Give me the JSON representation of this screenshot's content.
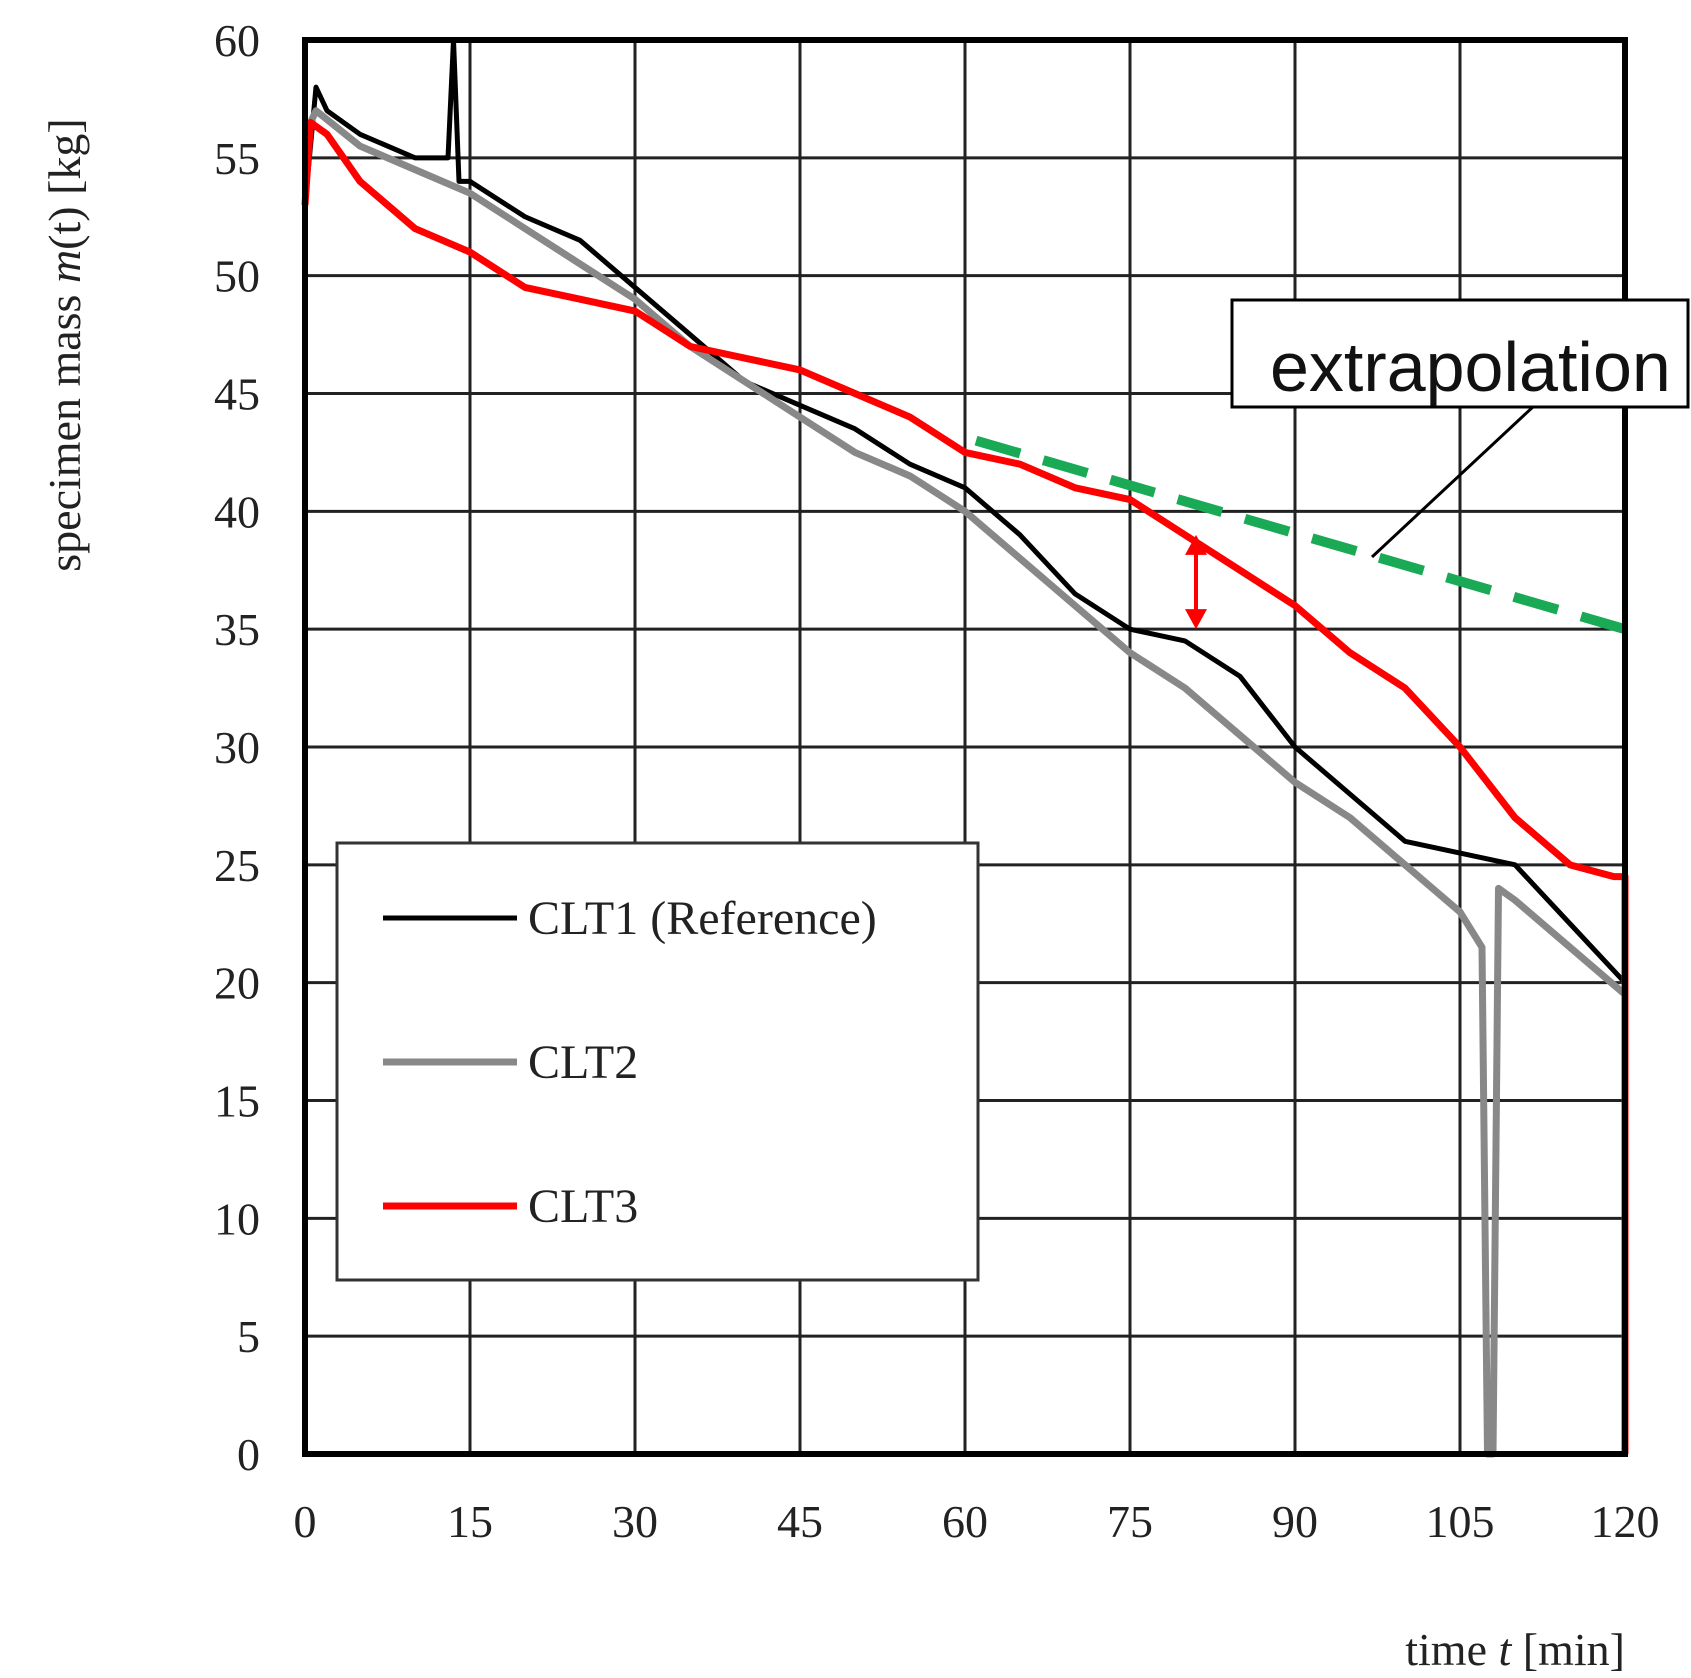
{
  "chart_data": {
    "type": "line",
    "xlabel_prefix": "time ",
    "xlabel_var": "t",
    "xlabel_unit": " [min]",
    "ylabel_prefix": "specimen mass ",
    "ylabel_var": "m",
    "ylabel_arg": "(t)",
    "ylabel_unit": " [kg]",
    "xlim": [
      0,
      120
    ],
    "ylim": [
      0,
      60
    ],
    "x_ticks": [
      0,
      15,
      30,
      45,
      60,
      75,
      90,
      105,
      120
    ],
    "y_ticks": [
      0,
      5,
      10,
      15,
      20,
      25,
      30,
      35,
      40,
      45,
      50,
      55,
      60
    ],
    "grid": true,
    "legend_position": "bottom-left",
    "series": [
      {
        "name": "CLT1 (Reference)",
        "color": "#000000",
        "x": [
          0,
          1,
          2,
          5,
          10,
          13,
          13.5,
          14,
          15,
          20,
          25,
          30,
          35,
          40,
          45,
          50,
          55,
          60,
          65,
          70,
          75,
          80,
          85,
          90,
          95,
          100,
          105,
          110,
          115,
          120
        ],
        "y": [
          53,
          58,
          57,
          56,
          55,
          55,
          60,
          54,
          54,
          52.5,
          51.5,
          49.5,
          47.5,
          45.5,
          44.5,
          43.5,
          42,
          41,
          39,
          36.5,
          35,
          34.5,
          33,
          30,
          28,
          26,
          25.5,
          25,
          22.5,
          20
        ]
      },
      {
        "name": "CLT2",
        "color": "#888888",
        "x": [
          0,
          1,
          5,
          10,
          15,
          20,
          25,
          30,
          35,
          40,
          45,
          50,
          55,
          60,
          65,
          70,
          75,
          80,
          85,
          90,
          95,
          100,
          105,
          107,
          107.5,
          108,
          108.5,
          110,
          115,
          120
        ],
        "y": [
          56,
          57,
          55.5,
          54.5,
          53.5,
          52,
          50.5,
          49,
          47,
          45.5,
          44,
          42.5,
          41.5,
          40,
          38,
          36,
          34,
          32.5,
          30.5,
          28.5,
          27,
          25,
          23,
          21.5,
          0,
          0,
          24,
          23.5,
          21.5,
          19.5
        ]
      },
      {
        "name": "CLT3",
        "color": "#ff0000",
        "x": [
          0,
          0.5,
          2,
          5,
          10,
          15,
          20,
          25,
          30,
          35,
          40,
          45,
          50,
          55,
          60,
          65,
          70,
          75,
          80,
          85,
          90,
          95,
          100,
          105,
          110,
          115,
          119,
          120,
          120
        ],
        "y": [
          53,
          56.5,
          56,
          54,
          52,
          51,
          49.5,
          49,
          48.5,
          47,
          46.5,
          46,
          45,
          44,
          42.5,
          42,
          41,
          40.5,
          39,
          37.5,
          36,
          34,
          32.5,
          30,
          27,
          25,
          24.5,
          24.5,
          0
        ]
      }
    ],
    "extrapolation": {
      "label": "extrapolation",
      "color": "#1aaa55",
      "x": [
        61,
        120
      ],
      "y": [
        43,
        35
      ]
    },
    "difference_arrow": {
      "color": "#ff0000",
      "x": 81,
      "y_top": 39,
      "y_bottom": 35
    }
  }
}
